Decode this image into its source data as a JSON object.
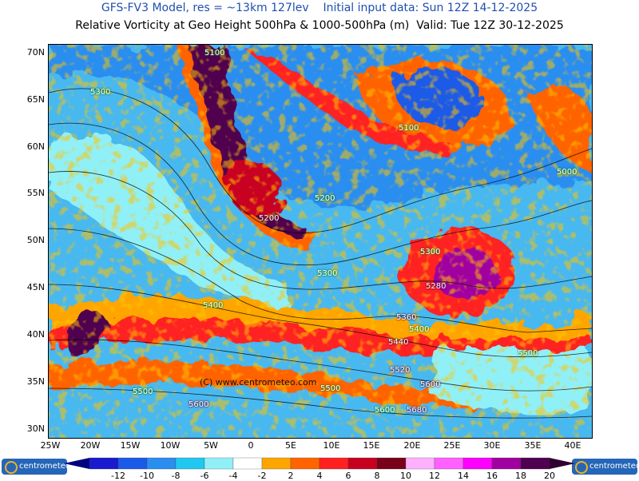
{
  "header": {
    "title1": "GFS-FV3 Model, res = ~13km 127lev    Initial input data: Sun 12Z 14-12-2025",
    "title2": "Relative Vorticity at Geo Height 500hPa & 1000-500hPa (m)  Valid: Tue 12Z 30-12-2025"
  },
  "axes": {
    "lat_labels": [
      "70N",
      "65N",
      "60N",
      "55N",
      "50N",
      "45N",
      "40N",
      "35N",
      "30N"
    ],
    "lon_labels": [
      "25W",
      "20W",
      "15W",
      "10W",
      "5W",
      "0",
      "5E",
      "10E",
      "15E",
      "20E",
      "25E",
      "30E",
      "35E",
      "40E"
    ]
  },
  "contour_labels": [
    "5100",
    "5300",
    "5100",
    "5000",
    "5200",
    "5200",
    "5300",
    "5300",
    "5280",
    "5400",
    "5360",
    "5400",
    "5440",
    "5500",
    "5520",
    "5600",
    "5500",
    "5600",
    "5500",
    "5600",
    "5680"
  ],
  "copyright": "(C) www.centrometeo.com",
  "colorbar": {
    "labels": [
      "-12",
      "-10",
      "-8",
      "-6",
      "-4",
      "-2",
      "2",
      "4",
      "6",
      "8",
      "10",
      "12",
      "14",
      "16",
      "18",
      "20"
    ],
    "colors": [
      "#1a1ad0",
      "#1a5ae8",
      "#2a8ef0",
      "#20c8f0",
      "#90f0f8",
      "#ffffff",
      "#ffa500",
      "#ff6400",
      "#ff2020",
      "#c80020",
      "#780018",
      "#ffb0ff",
      "#ff60ff",
      "#ff00ff",
      "#a000a0",
      "#500050"
    ],
    "low_end_color": "#000080",
    "high_end_color": "#300030"
  },
  "logos": {
    "left": "centrometeo",
    "right": "centrometeo"
  }
}
